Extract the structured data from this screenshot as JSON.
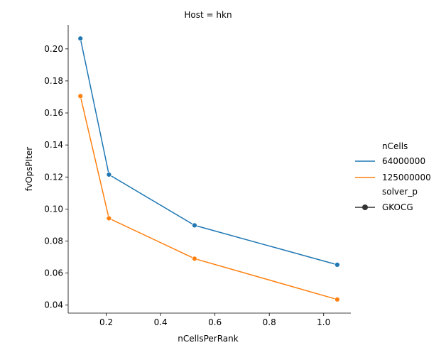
{
  "chart_data": {
    "type": "line",
    "title": "Host = hkn",
    "xlabel": "nCellsPerRank",
    "ylabel": "fvOpsPIter",
    "xlim": [
      0.06,
      1.1
    ],
    "ylim": [
      0.035,
      0.215
    ],
    "xticks": [
      "0.2",
      "0.4",
      "0.6",
      "0.8",
      "1.0"
    ],
    "xtick_values": [
      0.2,
      0.4,
      0.6,
      0.8,
      1.0
    ],
    "yticks": [
      "0.04",
      "0.06",
      "0.08",
      "0.10",
      "0.12",
      "0.14",
      "0.16",
      "0.18",
      "0.20"
    ],
    "ytick_values": [
      0.04,
      0.06,
      0.08,
      0.1,
      0.12,
      0.14,
      0.16,
      0.18,
      0.2
    ],
    "grid": false,
    "legend_position": "right",
    "legend": {
      "hue_title": "nCells",
      "style_title": "solver_p",
      "style_entry": "GKOCG"
    },
    "series": [
      {
        "name": "64000000",
        "color": "#1f77b4",
        "x": [
          0.105,
          0.21,
          0.525,
          1.05
        ],
        "y": [
          0.2065,
          0.1215,
          0.0898,
          0.0652
        ]
      },
      {
        "name": "125000000",
        "color": "#ff7f0e",
        "x": [
          0.105,
          0.21,
          0.525,
          1.05
        ],
        "y": [
          0.1705,
          0.0942,
          0.069,
          0.0435
        ]
      }
    ]
  }
}
